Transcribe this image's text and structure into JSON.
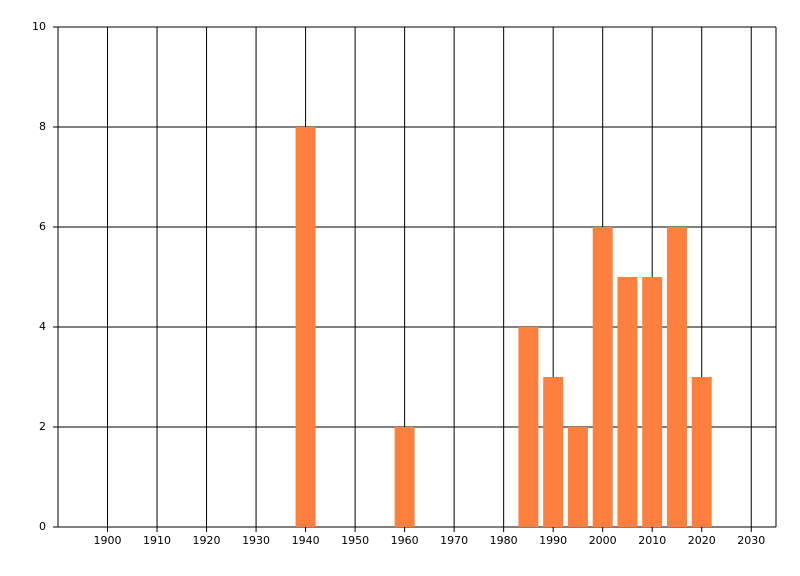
{
  "chart_data": {
    "type": "bar",
    "x": [
      1940,
      1960,
      1985,
      1990,
      1995,
      2000,
      2005,
      2010,
      2015,
      2020
    ],
    "values": [
      8,
      2,
      4,
      3,
      2,
      6,
      5,
      5,
      6,
      3
    ],
    "color": "#ff7f3f",
    "xlim": [
      1890,
      2035
    ],
    "xticks": [
      1900,
      1910,
      1920,
      1930,
      1940,
      1950,
      1960,
      1970,
      1980,
      1990,
      2000,
      2010,
      2020,
      2030
    ],
    "ylim": [
      0,
      10
    ],
    "yticks": [
      0,
      2,
      4,
      6,
      8,
      10
    ],
    "grid": true
  }
}
